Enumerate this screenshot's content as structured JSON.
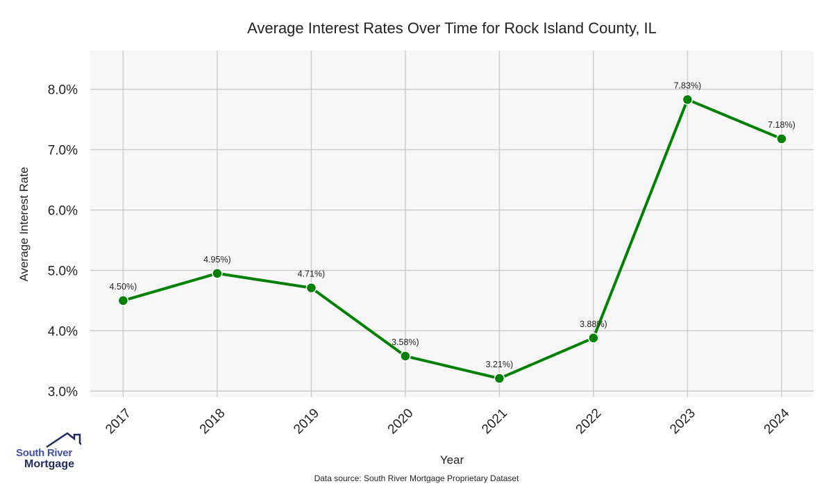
{
  "chart_data": {
    "type": "line",
    "title": "Average Interest Rates Over Time for Rock Island County, IL",
    "xlabel": "Year",
    "ylabel": "Average Interest Rate",
    "categories": [
      "2017",
      "2018",
      "2019",
      "2020",
      "2021",
      "2022",
      "2023",
      "2024"
    ],
    "values": [
      4.5,
      4.95,
      4.71,
      3.58,
      3.21,
      3.88,
      7.83,
      7.18
    ],
    "data_labels": [
      "4.50%)",
      "4.95%)",
      "4.71%)",
      "3.58%)",
      "3.21%)",
      "3.88%)",
      "7.83%)",
      "7.18%)"
    ],
    "y_ticks": [
      3.0,
      4.0,
      5.0,
      6.0,
      7.0,
      8.0
    ],
    "y_tick_labels": [
      "3.0%",
      "4.0%",
      "5.0%",
      "6.0%",
      "7.0%",
      "8.0%"
    ],
    "ylim": [
      2.9,
      8.64
    ],
    "xlim": [
      2016.65,
      2024.34
    ],
    "grid": true,
    "line_color": "#008000",
    "plot_background": "#f7f7f7",
    "grid_color": "#cccccc"
  },
  "footer": {
    "source": "Data source: South River Mortgage Proprietary Dataset"
  },
  "logo": {
    "line1": "South River",
    "line2": "Mortgage"
  }
}
